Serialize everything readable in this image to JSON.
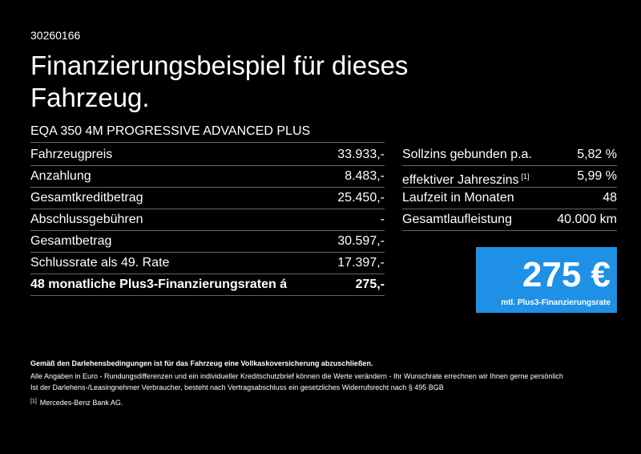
{
  "page_id": "30260166",
  "title": "Finanzierungsbeispiel für dieses Fahrzeug.",
  "model": "EQA 350 4M PROGRESSIVE ADVANCED PLUS",
  "left_table": {
    "rows": [
      {
        "label": "Fahrzeugpreis",
        "value": "33.933,-"
      },
      {
        "label": "Anzahlung",
        "value": "8.483,-"
      },
      {
        "label": "Gesamtkreditbetrag",
        "value": "25.450,-"
      },
      {
        "label": "Abschlussgebühren",
        "value": "-"
      },
      {
        "label": "Gesamtbetrag",
        "value": "30.597,-"
      },
      {
        "label": "Schlussrate als 49. Rate",
        "value": "17.397,-"
      },
      {
        "label": "48 monatliche Plus3-Finanzierungsraten á",
        "value": "275,-"
      }
    ]
  },
  "right_table": {
    "rows": [
      {
        "label": "Sollzins gebunden p.a.",
        "value": "5,82 %"
      },
      {
        "label": "effektiver Jahreszins",
        "note": "[1]",
        "value": "5,99 %"
      },
      {
        "label": "Laufzeit in Monaten",
        "value": "48"
      },
      {
        "label": "Gesamtlaufleistung",
        "value": "40.000 km"
      }
    ]
  },
  "rate_box": {
    "amount": "275 €",
    "label": "mtl. Plus3-Finanzierungsrate"
  },
  "notes": {
    "insurance": "Gemäß den Darlehensbedingungen ist für das Fahrzeug eine Vollkaskoversicherung abzuschließen.",
    "disclaimer": [
      "Alle Angaben in Euro - Rundungsdifferenzen und ein individueller Kreditschutzbrief können die Werte verändern - Ihr Wunschrate errechnen wir Ihnen gerne persönlich",
      "Ist der Darlehens-/Leasingnehmer Verbraucher, besteht nach Vertragsabschluss ein gesetzliches Widerrufsrecht nach § 495 BGB"
    ],
    "footnote": {
      "marker": "[1]",
      "text": "Mercedes-Benz Bank AG."
    }
  }
}
